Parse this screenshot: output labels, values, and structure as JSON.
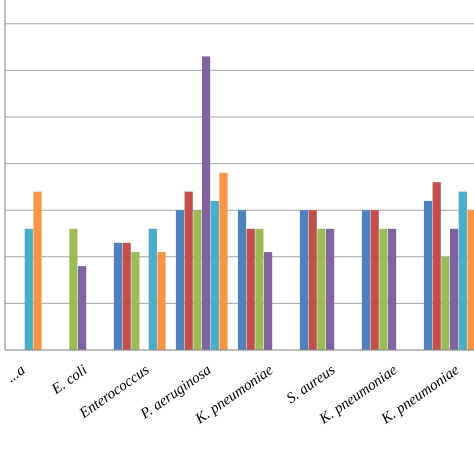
{
  "chart_data": {
    "type": "bar",
    "title": "",
    "xlabel": "",
    "ylabel": "",
    "ylim": [
      0,
      7.5
    ],
    "gridlines": [
      1,
      2,
      3,
      4,
      5,
      6,
      7
    ],
    "grid": true,
    "legend": "none visible",
    "categories": [
      "...a",
      "E. coli",
      "Enterococcus",
      "P. aeruginosa",
      "K. pneumoniae",
      "S. aureus",
      "K. pneumoniae",
      "K. pneumoniae"
    ],
    "series": [
      {
        "color": "#4f81bd",
        "values": [
          null,
          0,
          2.3,
          3.0,
          3.0,
          3.0,
          3.0,
          3.2
        ]
      },
      {
        "color": "#c0504d",
        "values": [
          null,
          0,
          2.3,
          3.4,
          2.6,
          3.0,
          3.0,
          3.6
        ]
      },
      {
        "color": "#9bbb59",
        "values": [
          null,
          2.6,
          2.1,
          3.0,
          2.6,
          2.6,
          2.6,
          2.0
        ]
      },
      {
        "color": "#8064a2",
        "values": [
          null,
          1.8,
          0,
          6.3,
          2.1,
          2.6,
          2.6,
          2.6
        ]
      },
      {
        "color": "#4bacc6",
        "values": [
          2.6,
          0,
          2.6,
          3.2,
          0,
          0,
          0,
          3.4
        ]
      },
      {
        "color": "#f79646",
        "values": [
          3.4,
          0,
          2.1,
          3.8,
          0,
          0,
          0,
          3.0
        ]
      }
    ]
  }
}
